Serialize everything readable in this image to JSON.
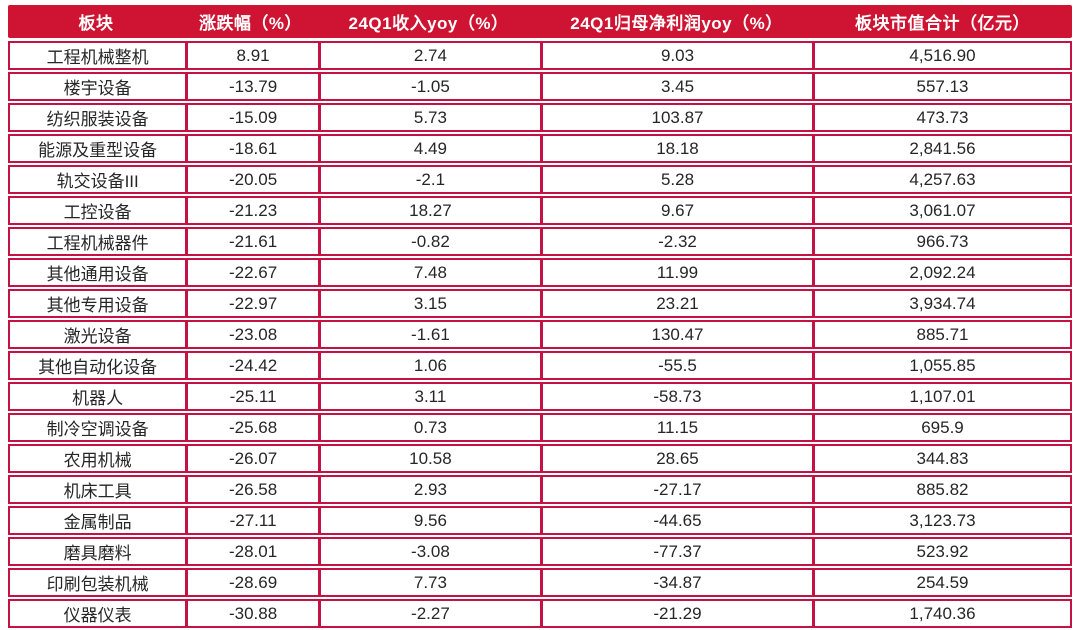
{
  "colors": {
    "header_bg": "#ce1432",
    "header_text": "#ffffff",
    "border": "#c51245",
    "cell_text": "#262626",
    "page_bg": "#ffffff"
  },
  "chart_data": {
    "type": "table",
    "columns": [
      "板块",
      "涨跌幅（%）",
      "24Q1收入yoy（%）",
      "24Q1归母净利润yoy（%）",
      "板块市值合计（亿元）"
    ],
    "rows": [
      [
        "工程机械整机",
        "8.91",
        "2.74",
        "9.03",
        "4,516.90"
      ],
      [
        "楼宇设备",
        "-13.79",
        "-1.05",
        "3.45",
        "557.13"
      ],
      [
        "纺织服装设备",
        "-15.09",
        "5.73",
        "103.87",
        "473.73"
      ],
      [
        "能源及重型设备",
        "-18.61",
        "4.49",
        "18.18",
        "2,841.56"
      ],
      [
        "轨交设备III",
        "-20.05",
        "-2.1",
        "5.28",
        "4,257.63"
      ],
      [
        "工控设备",
        "-21.23",
        "18.27",
        "9.67",
        "3,061.07"
      ],
      [
        "工程机械器件",
        "-21.61",
        "-0.82",
        "-2.32",
        "966.73"
      ],
      [
        "其他通用设备",
        "-22.67",
        "7.48",
        "11.99",
        "2,092.24"
      ],
      [
        "其他专用设备",
        "-22.97",
        "3.15",
        "23.21",
        "3,934.74"
      ],
      [
        "激光设备",
        "-23.08",
        "-1.61",
        "130.47",
        "885.71"
      ],
      [
        "其他自动化设备",
        "-24.42",
        "1.06",
        "-55.5",
        "1,055.85"
      ],
      [
        "机器人",
        "-25.11",
        "3.11",
        "-58.73",
        "1,107.01"
      ],
      [
        "制冷空调设备",
        "-25.68",
        "0.73",
        "11.15",
        "695.9"
      ],
      [
        "农用机械",
        "-26.07",
        "10.58",
        "28.65",
        "344.83"
      ],
      [
        "机床工具",
        "-26.58",
        "2.93",
        "-27.17",
        "885.82"
      ],
      [
        "金属制品",
        "-27.11",
        "9.56",
        "-44.65",
        "3,123.73"
      ],
      [
        "磨具磨料",
        "-28.01",
        "-3.08",
        "-77.37",
        "523.92"
      ],
      [
        "印刷包装机械",
        "-28.69",
        "7.73",
        "-34.87",
        "254.59"
      ],
      [
        "仪器仪表",
        "-30.88",
        "-2.27",
        "-21.29",
        "1,740.36"
      ]
    ]
  }
}
